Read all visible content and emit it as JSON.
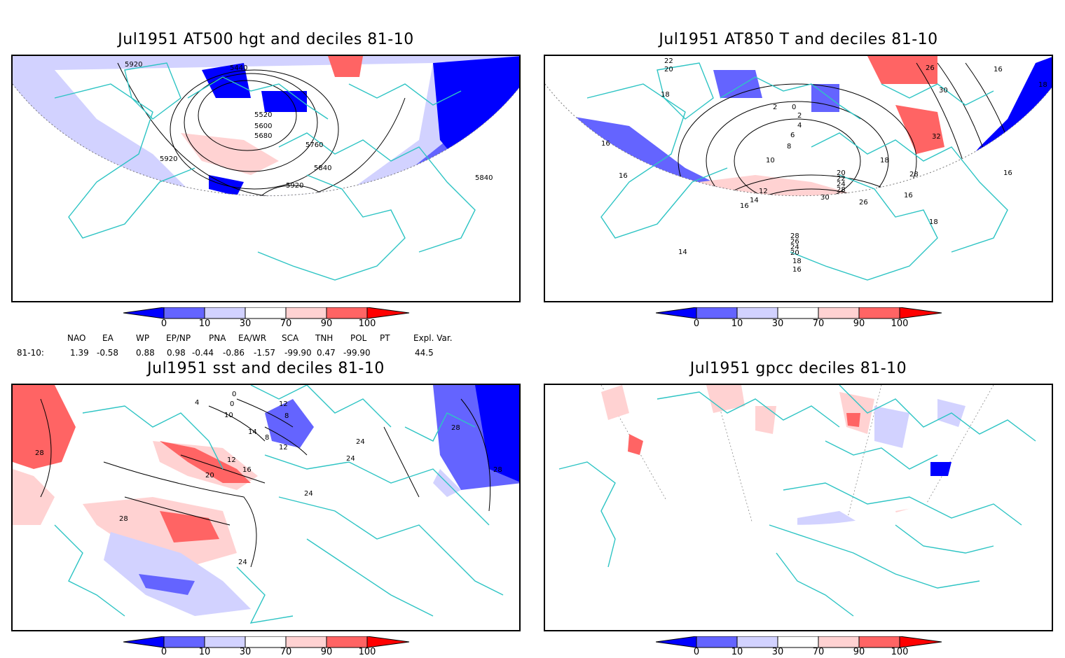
{
  "panels": [
    {
      "id": "p1",
      "title": "Jul1951 AT500 hgt and deciles 81-10",
      "contour_labels": [
        "5920",
        "5440",
        "5520",
        "5600",
        "5680",
        "5760",
        "5840",
        "5920",
        "5920",
        "5840"
      ]
    },
    {
      "id": "p2",
      "title": "Jul1951 AT850 T and deciles 81-10",
      "contour_labels": [
        "22",
        "20",
        "18",
        "2",
        "0",
        "2",
        "4",
        "6",
        "8",
        "10",
        "12",
        "14",
        "16",
        "16",
        "18",
        "16",
        "20",
        "22",
        "24",
        "28",
        "30",
        "26",
        "28",
        "28",
        "26",
        "24",
        "20",
        "18",
        "16",
        "14",
        "16",
        "18",
        "26",
        "30",
        "32",
        "16",
        "18",
        "16"
      ]
    },
    {
      "id": "p3",
      "title": "Jul1951 sst and deciles 81-10",
      "contour_labels": [
        "0",
        "4",
        "0",
        "10",
        "12",
        "8",
        "14",
        "12",
        "8",
        "16",
        "12",
        "20",
        "28",
        "28",
        "24",
        "24",
        "24",
        "24",
        "28",
        "28"
      ]
    },
    {
      "id": "p4",
      "title": "Jul1951 gpcc deciles 81-10",
      "contour_labels": []
    }
  ],
  "colorbar": {
    "ticks": [
      "0",
      "10",
      "30",
      "70",
      "90",
      "100"
    ],
    "colors": [
      "#0000ff",
      "#6464ff",
      "#d2d2ff",
      "#ffffff",
      "#ffd2d2",
      "#ff6464",
      "#ff0000"
    ]
  },
  "indices": {
    "headers": [
      "NAO",
      "EA",
      "WP",
      "EP/NP",
      "PNA",
      "EA/WR",
      "SCA",
      "TNH",
      "POL",
      "PT",
      "Expl. Var."
    ],
    "row_label": "81-10:",
    "values": [
      "1.39",
      "-0.58",
      "0.88",
      "0.98",
      "-0.44",
      "-0.86",
      "-1.57",
      "-99.90",
      "0.47",
      "-99.90",
      "44.5"
    ]
  }
}
